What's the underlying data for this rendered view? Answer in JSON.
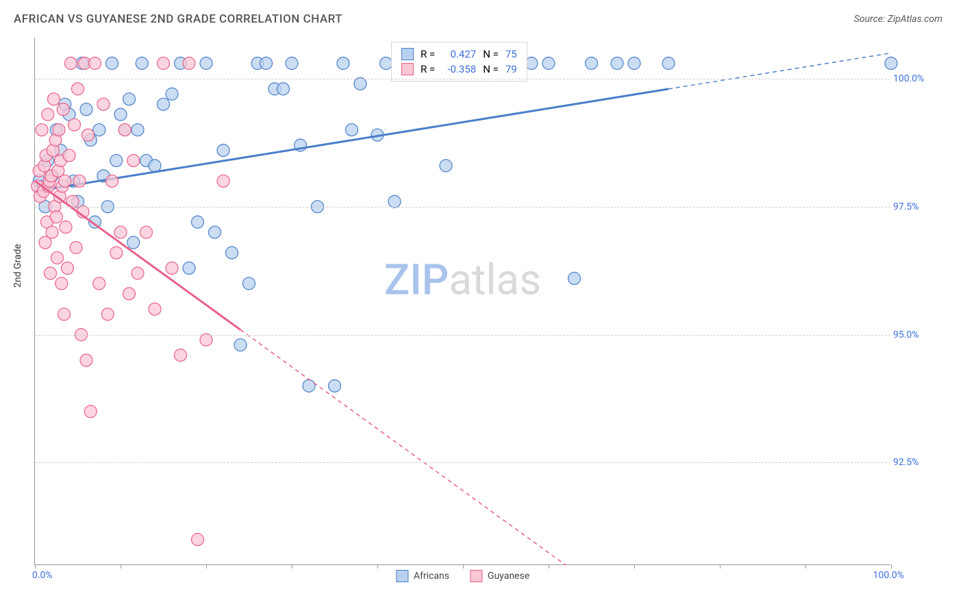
{
  "header": {
    "title": "AFRICAN VS GUYANESE 2ND GRADE CORRELATION CHART",
    "source": "Source: ZipAtlas.com"
  },
  "chart": {
    "type": "scatter",
    "ylabel": "2nd Grade",
    "xlim": [
      0,
      100
    ],
    "ylim": [
      90.5,
      100.8
    ],
    "xtick_positions": [
      0,
      10,
      20,
      30,
      40,
      50,
      60,
      70,
      80,
      90,
      100
    ],
    "ytick_positions": [
      92.5,
      95.0,
      97.5,
      100.0
    ],
    "ytick_labels": [
      "92.5%",
      "95.0%",
      "97.5%",
      "100.0%"
    ],
    "xaxis_left_label": "0.0%",
    "xaxis_right_label": "100.0%",
    "axis_label_color": "#3a6fd8",
    "grid_color": "#d5d5d5",
    "background_color": "#ffffff",
    "watermark": {
      "part1": "ZIP",
      "part2": "atlas",
      "color1": "#a9c3ec",
      "color2": "#d9d9d9"
    },
    "series": [
      {
        "name": "Africans",
        "fill": "#b9d1ef",
        "stroke": "#4a7fc9",
        "marker_opacity": 0.75,
        "r_value": "0.427",
        "n_value": "75",
        "trend": {
          "x1": 0,
          "y1": 97.8,
          "x2": 100,
          "y2": 100.5,
          "solid_until_x": 74
        },
        "points": [
          [
            0.5,
            98.0
          ],
          [
            1.0,
            97.9
          ],
          [
            1.2,
            97.5
          ],
          [
            1.5,
            98.4
          ],
          [
            2.0,
            98.1
          ],
          [
            2.5,
            99.0
          ],
          [
            3.0,
            98.6
          ],
          [
            3.5,
            99.5
          ],
          [
            4.0,
            99.3
          ],
          [
            4.5,
            98.0
          ],
          [
            5.0,
            97.6
          ],
          [
            5.5,
            100.3
          ],
          [
            6.0,
            99.4
          ],
          [
            6.5,
            98.8
          ],
          [
            7.0,
            97.2
          ],
          [
            7.5,
            99.0
          ],
          [
            8.0,
            98.1
          ],
          [
            8.5,
            97.5
          ],
          [
            9.0,
            100.3
          ],
          [
            9.5,
            98.4
          ],
          [
            10,
            99.3
          ],
          [
            10.5,
            99.0
          ],
          [
            11,
            99.6
          ],
          [
            11.5,
            96.8
          ],
          [
            12,
            99.0
          ],
          [
            12.5,
            100.3
          ],
          [
            13,
            98.4
          ],
          [
            14,
            98.3
          ],
          [
            15,
            99.5
          ],
          [
            16,
            99.7
          ],
          [
            17,
            100.3
          ],
          [
            18,
            96.3
          ],
          [
            19,
            97.2
          ],
          [
            20,
            100.3
          ],
          [
            21,
            97.0
          ],
          [
            22,
            98.6
          ],
          [
            23,
            96.6
          ],
          [
            24,
            94.8
          ],
          [
            25,
            96.0
          ],
          [
            26,
            100.3
          ],
          [
            27,
            100.3
          ],
          [
            28,
            99.8
          ],
          [
            29,
            99.8
          ],
          [
            30,
            100.3
          ],
          [
            31,
            98.7
          ],
          [
            32,
            94.0
          ],
          [
            33,
            97.5
          ],
          [
            35,
            94.0
          ],
          [
            36,
            100.3
          ],
          [
            37,
            99.0
          ],
          [
            38,
            99.9
          ],
          [
            40,
            98.9
          ],
          [
            41,
            100.3
          ],
          [
            42,
            97.6
          ],
          [
            45,
            100.3
          ],
          [
            46,
            100.3
          ],
          [
            48,
            98.3
          ],
          [
            52,
            100.3
          ],
          [
            55,
            100.3
          ],
          [
            58,
            100.3
          ],
          [
            60,
            100.3
          ],
          [
            63,
            96.1
          ],
          [
            65,
            100.3
          ],
          [
            68,
            100.3
          ],
          [
            70,
            100.3
          ],
          [
            74,
            100.3
          ],
          [
            100,
            100.3
          ]
        ]
      },
      {
        "name": "Guyanese",
        "fill": "#fac7d5",
        "stroke": "#e85f8a",
        "marker_opacity": 0.75,
        "r_value": "-0.358",
        "n_value": "79",
        "trend": {
          "x1": 0,
          "y1": 98.0,
          "x2": 62,
          "y2": 90.5,
          "solid_until_x": 24
        },
        "points": [
          [
            0.3,
            97.9
          ],
          [
            0.5,
            98.2
          ],
          [
            0.6,
            97.7
          ],
          [
            0.8,
            99.0
          ],
          [
            1.0,
            97.8
          ],
          [
            1.1,
            98.3
          ],
          [
            1.2,
            96.8
          ],
          [
            1.3,
            98.5
          ],
          [
            1.4,
            97.2
          ],
          [
            1.5,
            99.3
          ],
          [
            1.6,
            97.9
          ],
          [
            1.7,
            98.0
          ],
          [
            1.8,
            96.2
          ],
          [
            1.9,
            98.1
          ],
          [
            2.0,
            97.0
          ],
          [
            2.1,
            98.6
          ],
          [
            2.2,
            99.6
          ],
          [
            2.3,
            97.5
          ],
          [
            2.4,
            98.8
          ],
          [
            2.5,
            97.3
          ],
          [
            2.6,
            96.5
          ],
          [
            2.7,
            98.2
          ],
          [
            2.8,
            99.0
          ],
          [
            2.9,
            97.7
          ],
          [
            3.0,
            98.4
          ],
          [
            3.1,
            96.0
          ],
          [
            3.2,
            97.9
          ],
          [
            3.3,
            99.4
          ],
          [
            3.4,
            95.4
          ],
          [
            3.5,
            98.0
          ],
          [
            3.6,
            97.1
          ],
          [
            3.8,
            96.3
          ],
          [
            4.0,
            98.5
          ],
          [
            4.2,
            100.3
          ],
          [
            4.4,
            97.6
          ],
          [
            4.6,
            99.1
          ],
          [
            4.8,
            96.7
          ],
          [
            5.0,
            99.8
          ],
          [
            5.2,
            98.0
          ],
          [
            5.4,
            95.0
          ],
          [
            5.6,
            97.4
          ],
          [
            5.8,
            100.3
          ],
          [
            6.0,
            94.5
          ],
          [
            6.2,
            98.9
          ],
          [
            6.5,
            93.5
          ],
          [
            7.0,
            100.3
          ],
          [
            7.5,
            96.0
          ],
          [
            8.0,
            99.5
          ],
          [
            8.5,
            95.4
          ],
          [
            9.0,
            98.0
          ],
          [
            9.5,
            96.6
          ],
          [
            10.0,
            97.0
          ],
          [
            10.5,
            99.0
          ],
          [
            11.0,
            95.8
          ],
          [
            11.5,
            98.4
          ],
          [
            12.0,
            96.2
          ],
          [
            13.0,
            97.0
          ],
          [
            14.0,
            95.5
          ],
          [
            15.0,
            100.3
          ],
          [
            16.0,
            96.3
          ],
          [
            17.0,
            94.6
          ],
          [
            18.0,
            100.3
          ],
          [
            19.0,
            91.0
          ],
          [
            20.0,
            94.9
          ],
          [
            22.0,
            98.0
          ]
        ]
      }
    ],
    "legend_top": {
      "r_label": "R =",
      "n_label": "N =",
      "text_color": "#3a6fd8"
    },
    "legend_bottom": {
      "items": [
        "Africans",
        "Guyanese"
      ]
    }
  }
}
